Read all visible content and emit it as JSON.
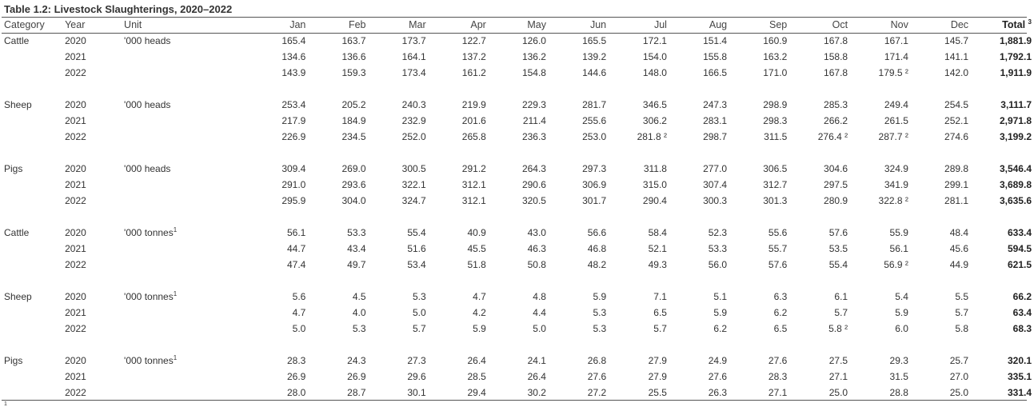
{
  "title": "Table 1.2: Livestock Slaughterings, 2020–2022",
  "headers": {
    "category": "Category",
    "year": "Year",
    "unit": "Unit",
    "months": [
      "Jan",
      "Feb",
      "Mar",
      "Apr",
      "May",
      "Jun",
      "Jul",
      "Aug",
      "Sep",
      "Oct",
      "Nov",
      "Dec"
    ],
    "total": "Total",
    "total_sup": "3"
  },
  "unit_sup": "1",
  "value_sup": "²",
  "groups": [
    {
      "category": "Cattle",
      "unit": "'000 heads",
      "rows": [
        {
          "year": "2020",
          "values": [
            "165.4",
            "163.7",
            "173.7",
            "122.7",
            "126.0",
            "165.5",
            "172.1",
            "151.4",
            "160.9",
            "167.8",
            "167.1",
            "145.7"
          ],
          "total": "1,881.9"
        },
        {
          "year": "2021",
          "values": [
            "134.6",
            "136.6",
            "164.1",
            "137.2",
            "136.2",
            "139.2",
            "154.0",
            "155.8",
            "163.2",
            "158.8",
            "171.4",
            "141.1"
          ],
          "total": "1,792.1"
        },
        {
          "year": "2022",
          "values": [
            "143.9",
            "159.3",
            "173.4",
            "161.2",
            "154.8",
            "144.6",
            "148.0",
            "166.5",
            "171.0",
            "167.8",
            "179.5 ²",
            "142.0"
          ],
          "total": "1,911.9"
        }
      ]
    },
    {
      "category": "Sheep",
      "unit": "'000 heads",
      "rows": [
        {
          "year": "2020",
          "values": [
            "253.4",
            "205.2",
            "240.3",
            "219.9",
            "229.3",
            "281.7",
            "346.5",
            "247.3",
            "298.9",
            "285.3",
            "249.4",
            "254.5"
          ],
          "total": "3,111.7"
        },
        {
          "year": "2021",
          "values": [
            "217.9",
            "184.9",
            "232.9",
            "201.6",
            "211.4",
            "255.6",
            "306.2",
            "283.1",
            "298.3",
            "266.2",
            "261.5",
            "252.1"
          ],
          "total": "2,971.8"
        },
        {
          "year": "2022",
          "values": [
            "226.9",
            "234.5",
            "252.0",
            "265.8",
            "236.3",
            "253.0",
            "281.8 ²",
            "298.7",
            "311.5",
            "276.4 ²",
            "287.7 ²",
            "274.6"
          ],
          "total": "3,199.2"
        }
      ]
    },
    {
      "category": "Pigs",
      "unit": "'000 heads",
      "rows": [
        {
          "year": "2020",
          "values": [
            "309.4",
            "269.0",
            "300.5",
            "291.2",
            "264.3",
            "297.3",
            "311.8",
            "277.0",
            "306.5",
            "304.6",
            "324.9",
            "289.8"
          ],
          "total": "3,546.4"
        },
        {
          "year": "2021",
          "values": [
            "291.0",
            "293.6",
            "322.1",
            "312.1",
            "290.6",
            "306.9",
            "315.0",
            "307.4",
            "312.7",
            "297.5",
            "341.9",
            "299.1"
          ],
          "total": "3,689.8"
        },
        {
          "year": "2022",
          "values": [
            "295.9",
            "304.0",
            "324.7",
            "312.1",
            "320.5",
            "301.7",
            "290.4",
            "300.3",
            "301.3",
            "280.9",
            "322.8 ²",
            "281.1"
          ],
          "total": "3,635.6"
        }
      ]
    },
    {
      "category": "Cattle",
      "unit": "'000 tonnes",
      "rows": [
        {
          "year": "2020",
          "values": [
            "56.1",
            "53.3",
            "55.4",
            "40.9",
            "43.0",
            "56.6",
            "58.4",
            "52.3",
            "55.6",
            "57.6",
            "55.9",
            "48.4"
          ],
          "total": "633.4"
        },
        {
          "year": "2021",
          "values": [
            "44.7",
            "43.4",
            "51.6",
            "45.5",
            "46.3",
            "46.8",
            "52.1",
            "53.3",
            "55.7",
            "53.5",
            "56.1",
            "45.6"
          ],
          "total": "594.5"
        },
        {
          "year": "2022",
          "values": [
            "47.4",
            "49.7",
            "53.4",
            "51.8",
            "50.8",
            "48.2",
            "49.3",
            "56.0",
            "57.6",
            "55.4",
            "56.9 ²",
            "44.9"
          ],
          "total": "621.5"
        }
      ]
    },
    {
      "category": "Sheep",
      "unit": "'000 tonnes",
      "rows": [
        {
          "year": "2020",
          "values": [
            "5.6",
            "4.5",
            "5.3",
            "4.7",
            "4.8",
            "5.9",
            "7.1",
            "5.1",
            "6.3",
            "6.1",
            "5.4",
            "5.5"
          ],
          "total": "66.2"
        },
        {
          "year": "2021",
          "values": [
            "4.7",
            "4.0",
            "5.0",
            "4.2",
            "4.4",
            "5.3",
            "6.5",
            "5.9",
            "6.2",
            "5.7",
            "5.9",
            "5.7"
          ],
          "total": "63.4"
        },
        {
          "year": "2022",
          "values": [
            "5.0",
            "5.3",
            "5.7",
            "5.9",
            "5.0",
            "5.3",
            "5.7",
            "6.2",
            "6.5",
            "5.8 ²",
            "6.0",
            "5.8"
          ],
          "total": "68.3"
        }
      ]
    },
    {
      "category": "Pigs",
      "unit": "'000 tonnes",
      "rows": [
        {
          "year": "2020",
          "values": [
            "28.3",
            "24.3",
            "27.3",
            "26.4",
            "24.1",
            "26.8",
            "27.9",
            "24.9",
            "27.6",
            "27.5",
            "29.3",
            "25.7"
          ],
          "total": "320.1"
        },
        {
          "year": "2021",
          "values": [
            "26.9",
            "26.9",
            "29.6",
            "28.5",
            "26.4",
            "27.6",
            "27.9",
            "27.6",
            "28.3",
            "27.1",
            "31.5",
            "27.0"
          ],
          "total": "335.1"
        },
        {
          "year": "2022",
          "values": [
            "28.0",
            "28.7",
            "30.1",
            "29.4",
            "30.2",
            "27.2",
            "25.5",
            "26.3",
            "27.1",
            "25.0",
            "28.8",
            "25.0"
          ],
          "total": "331.4"
        }
      ]
    }
  ],
  "footnote": "1"
}
